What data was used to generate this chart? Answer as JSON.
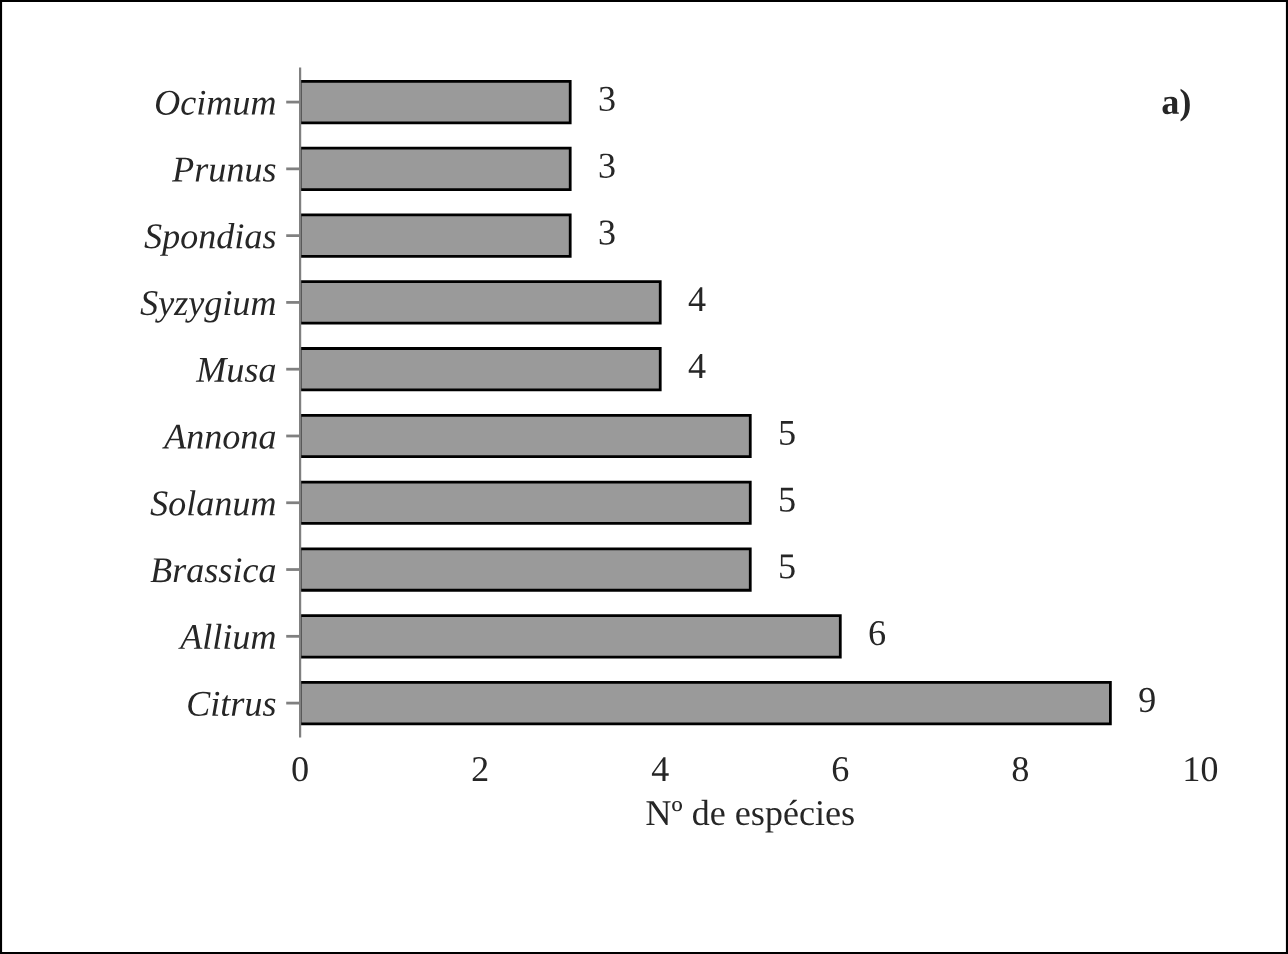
{
  "chart_data": {
    "type": "bar",
    "orientation": "horizontal",
    "xlabel": "Nº de espécies",
    "categories": [
      "Ocimum",
      "Prunus",
      "Spondias",
      "Syzygium",
      "Musa",
      "Annona",
      "Solanum",
      "Brassica",
      "Allium",
      "Citrus"
    ],
    "values": [
      3,
      3,
      3,
      4,
      4,
      5,
      5,
      5,
      6,
      9
    ],
    "color": "#9a9a9a",
    "xlim": [
      0,
      10
    ],
    "xticks": [
      0,
      2,
      4,
      6,
      8,
      10
    ],
    "data_labels": true,
    "grid": false,
    "legend": false,
    "annotations": [
      "a)"
    ]
  }
}
